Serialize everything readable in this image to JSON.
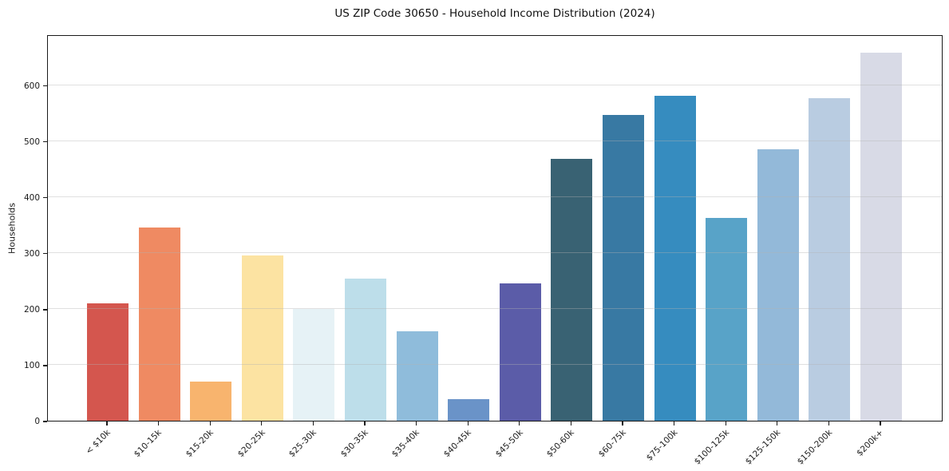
{
  "title": "US ZIP Code 30650 - Household Income Distribution (2024)",
  "chart_data": {
    "type": "bar",
    "title": "US ZIP Code 30650 - Household Income Distribution (2024)",
    "xlabel": "",
    "ylabel": "Households",
    "categories": [
      "< $10k",
      "$10-15k",
      "$15-20k",
      "$20-25k",
      "$25-30k",
      "$30-35k",
      "$35-40k",
      "$40-45k",
      "$45-50k",
      "$50-60k",
      "$60-75k",
      "$75-100k",
      "$100-125k",
      "$125-150k",
      "$150-200k",
      "$200k+"
    ],
    "values": [
      210,
      346,
      70,
      295,
      200,
      254,
      160,
      39,
      246,
      469,
      547,
      581,
      362,
      486,
      577,
      658
    ],
    "bar_colors": [
      "#d4564e",
      "#ef8a62",
      "#f8b46e",
      "#fce3a2",
      "#e6f2f6",
      "#bddeea",
      "#8fbcdb",
      "#6a93c8",
      "#5b5ca8",
      "#396273",
      "#3879a3",
      "#368cbf",
      "#58a3c8",
      "#93b9d9",
      "#b9cce1",
      "#d8dae6"
    ],
    "ylim": [
      0,
      691
    ],
    "yticks": [
      0,
      100,
      200,
      300,
      400,
      500,
      600
    ],
    "grid": "horizontal",
    "gridline_color": "#e9e9e9",
    "legend": "none",
    "x_tick_rotation_deg": 45
  }
}
